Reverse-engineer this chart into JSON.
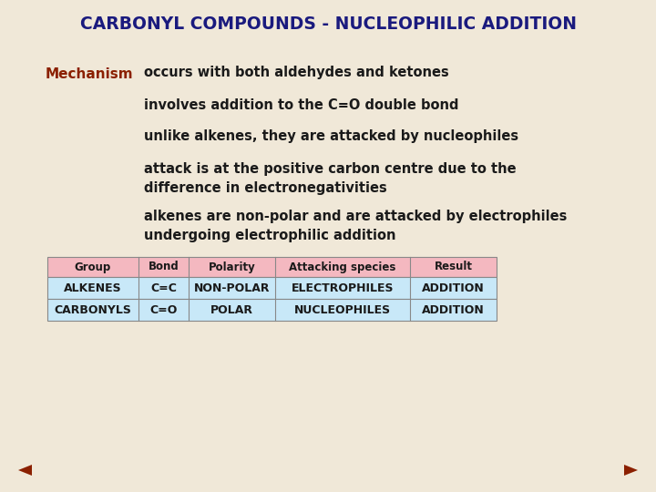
{
  "title": "CARBONYL COMPOUNDS - NUCLEOPHILIC ADDITION",
  "title_color": "#1a1a7e",
  "background_color": "#f0e8d8",
  "mechanism_label": "Mechanism",
  "mechanism_color": "#8b2000",
  "bullet_points": [
    "occurs with both aldehydes and ketones",
    "involves addition to the C=O double bond",
    "unlike alkenes, they are attacked by nucleophiles",
    "attack is at the positive carbon centre due to the\ndifference in electronegativities",
    "alkenes are non-polar and are attacked by electrophiles\nundergoing electrophilic addition"
  ],
  "bullet_color": "#1a1a1a",
  "table_headers": [
    "Group",
    "Bond",
    "Polarity",
    "Attacking species",
    "Result"
  ],
  "table_header_bg": "#f4b8c0",
  "table_row1": [
    "ALKENES",
    "C=C",
    "NON-POLAR",
    "ELECTROPHILES",
    "ADDITION"
  ],
  "table_row2": [
    "CARBONYLS",
    "C=O",
    "POLAR",
    "NUCLEOPHILES",
    "ADDITION"
  ],
  "table_row_bg": "#c8e8f8",
  "table_border_color": "#888888",
  "table_text_color": "#1a1a1a",
  "nav_arrow_color": "#8b2000"
}
